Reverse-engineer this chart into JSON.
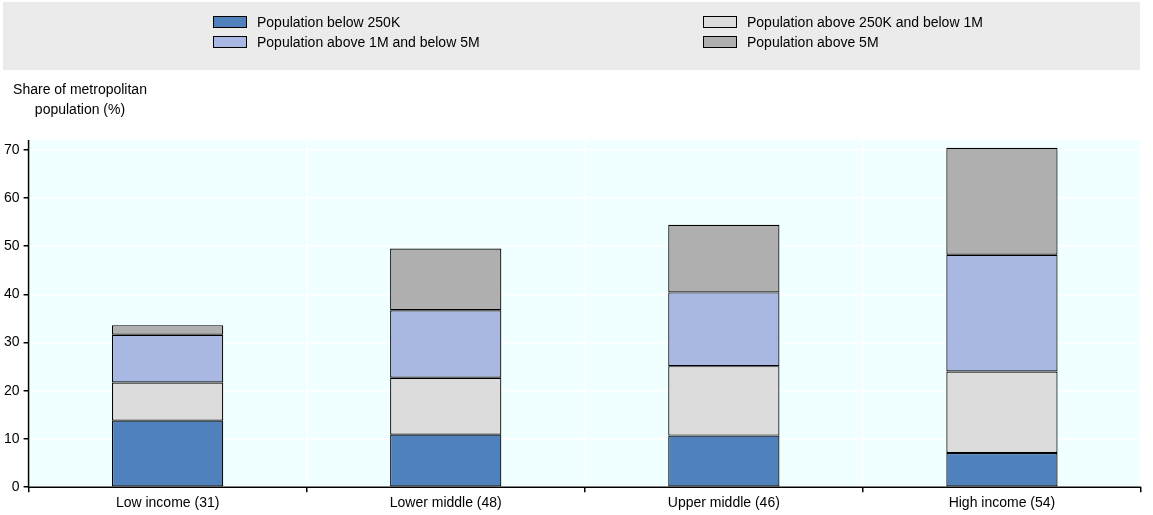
{
  "chart_data": {
    "type": "bar",
    "stacked": true,
    "ylabel": "Share of metropolitan population (%)",
    "categories": [
      "Low income (31)",
      "Lower middle (48)",
      "Upper middle (46)",
      "High income (54)"
    ],
    "series": [
      {
        "name": "Population below 250K",
        "color": "#4f81bd",
        "values": [
          13.8,
          10.9,
          10.7,
          7.1
        ]
      },
      {
        "name": "Population above 250K and below 1M",
        "color": "#dcdcdc",
        "values": [
          7.9,
          11.8,
          14.4,
          16.9
        ]
      },
      {
        "name": "Population above 1M and below 5M",
        "color": "#a8b8e2",
        "values": [
          9.9,
          14.0,
          15.3,
          24.2
        ]
      },
      {
        "name": "Population above 5M",
        "color": "#afafaf",
        "values": [
          2.0,
          12.8,
          14.0,
          22.2
        ]
      }
    ],
    "ylim": [
      0,
      72
    ],
    "yticks": [
      0,
      10,
      20,
      30,
      40,
      50,
      60,
      70
    ],
    "grid": true,
    "legend": "top"
  }
}
